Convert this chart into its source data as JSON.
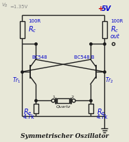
{
  "title": "Symmetrischer Oszillator",
  "vb_label": "VB =1.35V",
  "vcc_label": "+5V",
  "rc_label": "100R",
  "out_label": "out",
  "tr1_label": "Tr1",
  "tr2_label": "Tr2",
  "bc548_label": "BC548",
  "bc548b_label": "BC548 B",
  "quartz_label": "Quartz",
  "re_value": "4.7k",
  "bg_color": "#e8e8d8",
  "line_color": "#1a1a1a",
  "blue_color": "#0000cc",
  "red_color": "#cc0000",
  "gray_color": "#888888",
  "figsize": [
    1.88,
    2.08
  ],
  "dpi": 100
}
